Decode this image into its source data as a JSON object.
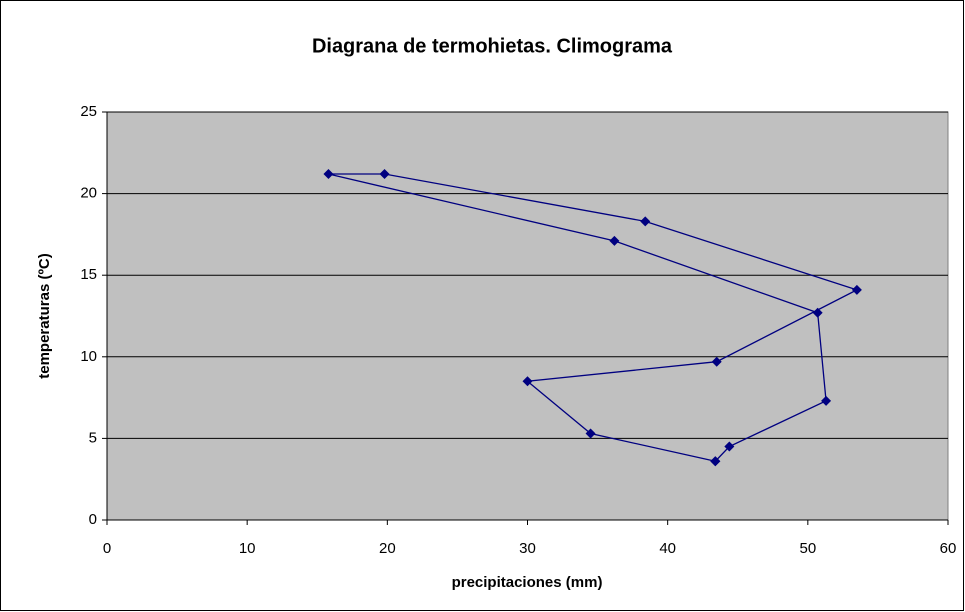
{
  "chart_data": {
    "type": "scatter-line",
    "title": "Diagrana de termohietas. Climograma",
    "xlabel": "precipitaciones (mm)",
    "ylabel": "temperaturas (ºC)",
    "x": [
      43.4,
      44.4,
      51.3,
      50.7,
      36.2,
      15.8,
      19.8,
      38.4,
      53.5,
      43.5,
      30.0,
      34.5,
      43.4
    ],
    "values": [
      3.6,
      4.5,
      7.3,
      12.7,
      17.1,
      21.2,
      21.2,
      18.3,
      14.1,
      9.7,
      8.5,
      5.3,
      3.6
    ],
    "color": "#000080",
    "xlim": [
      0,
      60
    ],
    "xticks": [
      0,
      10,
      20,
      30,
      40,
      50,
      60
    ],
    "ylim": [
      0,
      25
    ],
    "yticks": [
      0,
      5,
      10,
      15,
      20,
      25
    ],
    "grid": true
  }
}
